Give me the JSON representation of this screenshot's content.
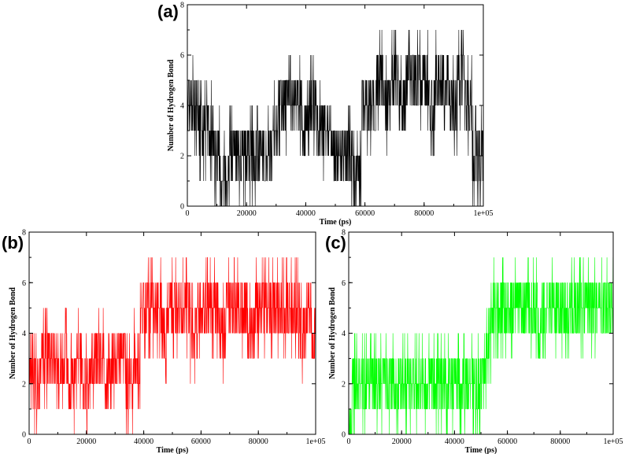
{
  "chart_data": [
    {
      "type": "line",
      "panel_label": "(a)",
      "xlabel": "Time (ps)",
      "ylabel": "Number of Hydrogen Bond",
      "xlim": [
        0,
        100000
      ],
      "ylim": [
        0,
        8
      ],
      "xticks": [
        "0",
        "20000",
        "40000",
        "60000",
        "80000",
        "1e+05"
      ],
      "yticks": [
        "0",
        "2",
        "4",
        "6",
        "8"
      ],
      "grid": false,
      "color": "#000000",
      "series": [
        {
          "x": [
            0,
            2500,
            5000,
            7500,
            10000,
            12500,
            15000,
            17500,
            20000,
            22500,
            25000,
            27500,
            30000,
            32500,
            35000,
            37500,
            40000,
            42500,
            45000,
            47500,
            50000,
            52500,
            55000,
            57500,
            60000,
            62500,
            65000,
            67500,
            70000,
            72500,
            75000,
            77500,
            80000,
            82500,
            85000,
            87500,
            90000,
            92500,
            95000,
            97500,
            100000
          ],
          "values": [
            4,
            4,
            3,
            3,
            2,
            1,
            2,
            2,
            2,
            2,
            2,
            2,
            3,
            4,
            4,
            4,
            3,
            4,
            3,
            3,
            2,
            2,
            2,
            1,
            4,
            4,
            5,
            4,
            5,
            4,
            5,
            5,
            5,
            4,
            5,
            5,
            4,
            5,
            4,
            2,
            2
          ]
        }
      ]
    },
    {
      "type": "line",
      "panel_label": "(b)",
      "xlabel": "Time (ps)",
      "ylabel": "Number of Hydrogen Bond",
      "xlim": [
        0,
        100000
      ],
      "ylim": [
        0,
        8
      ],
      "xticks": [
        "0",
        "20000",
        "40000",
        "60000",
        "80000",
        "1e+05"
      ],
      "yticks": [
        "0",
        "2",
        "4",
        "6",
        "8"
      ],
      "grid": false,
      "color": "#ff0000",
      "series": [
        {
          "x": [
            0,
            2500,
            5000,
            7500,
            10000,
            12500,
            15000,
            17500,
            20000,
            22500,
            25000,
            27500,
            30000,
            32500,
            35000,
            37500,
            40000,
            42500,
            45000,
            47500,
            50000,
            52500,
            55000,
            57500,
            60000,
            62500,
            65000,
            67500,
            70000,
            72500,
            75000,
            77500,
            80000,
            82500,
            85000,
            87500,
            90000,
            92500,
            95000,
            97500,
            100000
          ],
          "values": [
            3,
            2,
            3,
            3,
            2,
            3,
            2,
            3,
            2,
            3,
            3,
            2,
            3,
            3,
            2,
            3,
            5,
            5,
            5,
            4,
            5,
            5,
            5,
            4,
            5,
            5,
            5,
            4,
            5,
            5,
            5,
            4,
            5,
            5,
            5,
            5,
            5,
            5,
            4,
            5,
            4
          ]
        }
      ]
    },
    {
      "type": "line",
      "panel_label": "(c)",
      "xlabel": "Time (ps)",
      "ylabel": "Number of Hydrogen Bond",
      "xlim": [
        0,
        100000
      ],
      "ylim": [
        0,
        8
      ],
      "xticks": [
        "0",
        "20000",
        "40000",
        "60000",
        "80000",
        "1e+05"
      ],
      "yticks": [
        "0",
        "2",
        "4",
        "6",
        "8"
      ],
      "grid": false,
      "color": "#00ff00",
      "series": [
        {
          "x": [
            0,
            2500,
            5000,
            7500,
            10000,
            12500,
            15000,
            17500,
            20000,
            22500,
            25000,
            27500,
            30000,
            32500,
            35000,
            37500,
            40000,
            42500,
            45000,
            47500,
            50000,
            52500,
            55000,
            57500,
            60000,
            62500,
            65000,
            67500,
            70000,
            72500,
            75000,
            77500,
            80000,
            82500,
            85000,
            87500,
            90000,
            92500,
            95000,
            97500,
            100000
          ],
          "values": [
            0,
            2,
            2,
            2,
            2,
            2,
            2,
            2,
            2,
            2,
            2,
            2,
            2,
            2,
            2,
            2,
            2,
            2,
            2,
            2,
            2,
            3,
            5,
            5,
            5,
            5,
            5,
            5,
            5,
            4,
            5,
            5,
            5,
            5,
            5,
            5,
            5,
            5,
            5,
            5,
            5
          ]
        }
      ]
    }
  ]
}
